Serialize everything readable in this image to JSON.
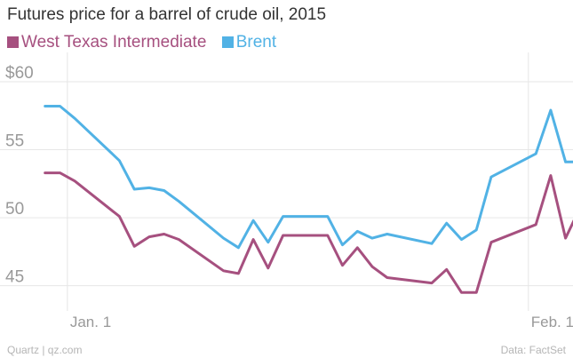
{
  "chart_data": {
    "type": "line",
    "title": "Futures price for a barrel of crude oil, 2015",
    "xlabel": "",
    "ylabel": "",
    "x_ticks": [
      {
        "label": "Jan. 1",
        "x": 1
      },
      {
        "label": "Feb. 1",
        "x": 32
      }
    ],
    "y_ticks": [
      {
        "label": "$60",
        "value": 60
      },
      {
        "label": "55",
        "value": 55
      },
      {
        "label": "50",
        "value": 50
      },
      {
        "label": "45",
        "value": 45
      }
    ],
    "ylim": [
      44,
      61.5
    ],
    "xlim": [
      -1.5,
      35
    ],
    "grid": true,
    "legend_position": "top-left",
    "series": [
      {
        "name": "West Texas Intermediate",
        "color": "#a6507f",
        "points": [
          {
            "x": -0.5,
            "y": 53.3
          },
          {
            "x": 0.5,
            "y": 53.3
          },
          {
            "x": 1.5,
            "y": 52.7
          },
          {
            "x": 4.5,
            "y": 50.1
          },
          {
            "x": 5.5,
            "y": 47.9
          },
          {
            "x": 6.5,
            "y": 48.6
          },
          {
            "x": 7.5,
            "y": 48.8
          },
          {
            "x": 8.5,
            "y": 48.4
          },
          {
            "x": 11.5,
            "y": 46.1
          },
          {
            "x": 12.5,
            "y": 45.9
          },
          {
            "x": 13.5,
            "y": 48.4
          },
          {
            "x": 14.5,
            "y": 46.3
          },
          {
            "x": 15.5,
            "y": 48.7
          },
          {
            "x": 18.5,
            "y": 48.7
          },
          {
            "x": 19.5,
            "y": 46.5
          },
          {
            "x": 20.5,
            "y": 47.8
          },
          {
            "x": 21.5,
            "y": 46.4
          },
          {
            "x": 22.5,
            "y": 45.6
          },
          {
            "x": 25.5,
            "y": 45.2
          },
          {
            "x": 26.5,
            "y": 46.2
          },
          {
            "x": 27.5,
            "y": 44.5
          },
          {
            "x": 28.5,
            "y": 44.5
          },
          {
            "x": 29.5,
            "y": 48.2
          },
          {
            "x": 32.5,
            "y": 49.5
          },
          {
            "x": 33.5,
            "y": 53.1
          },
          {
            "x": 34.5,
            "y": 48.5
          },
          {
            "x": 35.5,
            "y": 50.8
          }
        ]
      },
      {
        "name": "Brent",
        "color": "#51b2e5",
        "points": [
          {
            "x": -0.5,
            "y": 58.2
          },
          {
            "x": 0.5,
            "y": 58.2
          },
          {
            "x": 1.5,
            "y": 57.3
          },
          {
            "x": 4.5,
            "y": 54.2
          },
          {
            "x": 5.5,
            "y": 52.1
          },
          {
            "x": 6.5,
            "y": 52.2
          },
          {
            "x": 7.5,
            "y": 52.0
          },
          {
            "x": 8.5,
            "y": 51.2
          },
          {
            "x": 11.5,
            "y": 48.5
          },
          {
            "x": 12.5,
            "y": 47.8
          },
          {
            "x": 13.5,
            "y": 49.8
          },
          {
            "x": 14.5,
            "y": 48.2
          },
          {
            "x": 15.5,
            "y": 50.1
          },
          {
            "x": 18.5,
            "y": 50.1
          },
          {
            "x": 19.5,
            "y": 48.0
          },
          {
            "x": 20.5,
            "y": 49.0
          },
          {
            "x": 21.5,
            "y": 48.5
          },
          {
            "x": 22.5,
            "y": 48.8
          },
          {
            "x": 25.5,
            "y": 48.1
          },
          {
            "x": 26.5,
            "y": 49.6
          },
          {
            "x": 27.5,
            "y": 48.4
          },
          {
            "x": 28.5,
            "y": 49.1
          },
          {
            "x": 29.5,
            "y": 53.0
          },
          {
            "x": 32.5,
            "y": 54.7
          },
          {
            "x": 33.5,
            "y": 57.9
          },
          {
            "x": 34.5,
            "y": 54.1
          },
          {
            "x": 35.5,
            "y": 54.1
          }
        ]
      }
    ]
  },
  "footer": {
    "source_left": "Quartz | qz.com",
    "source_right": "Data: FactSet"
  }
}
